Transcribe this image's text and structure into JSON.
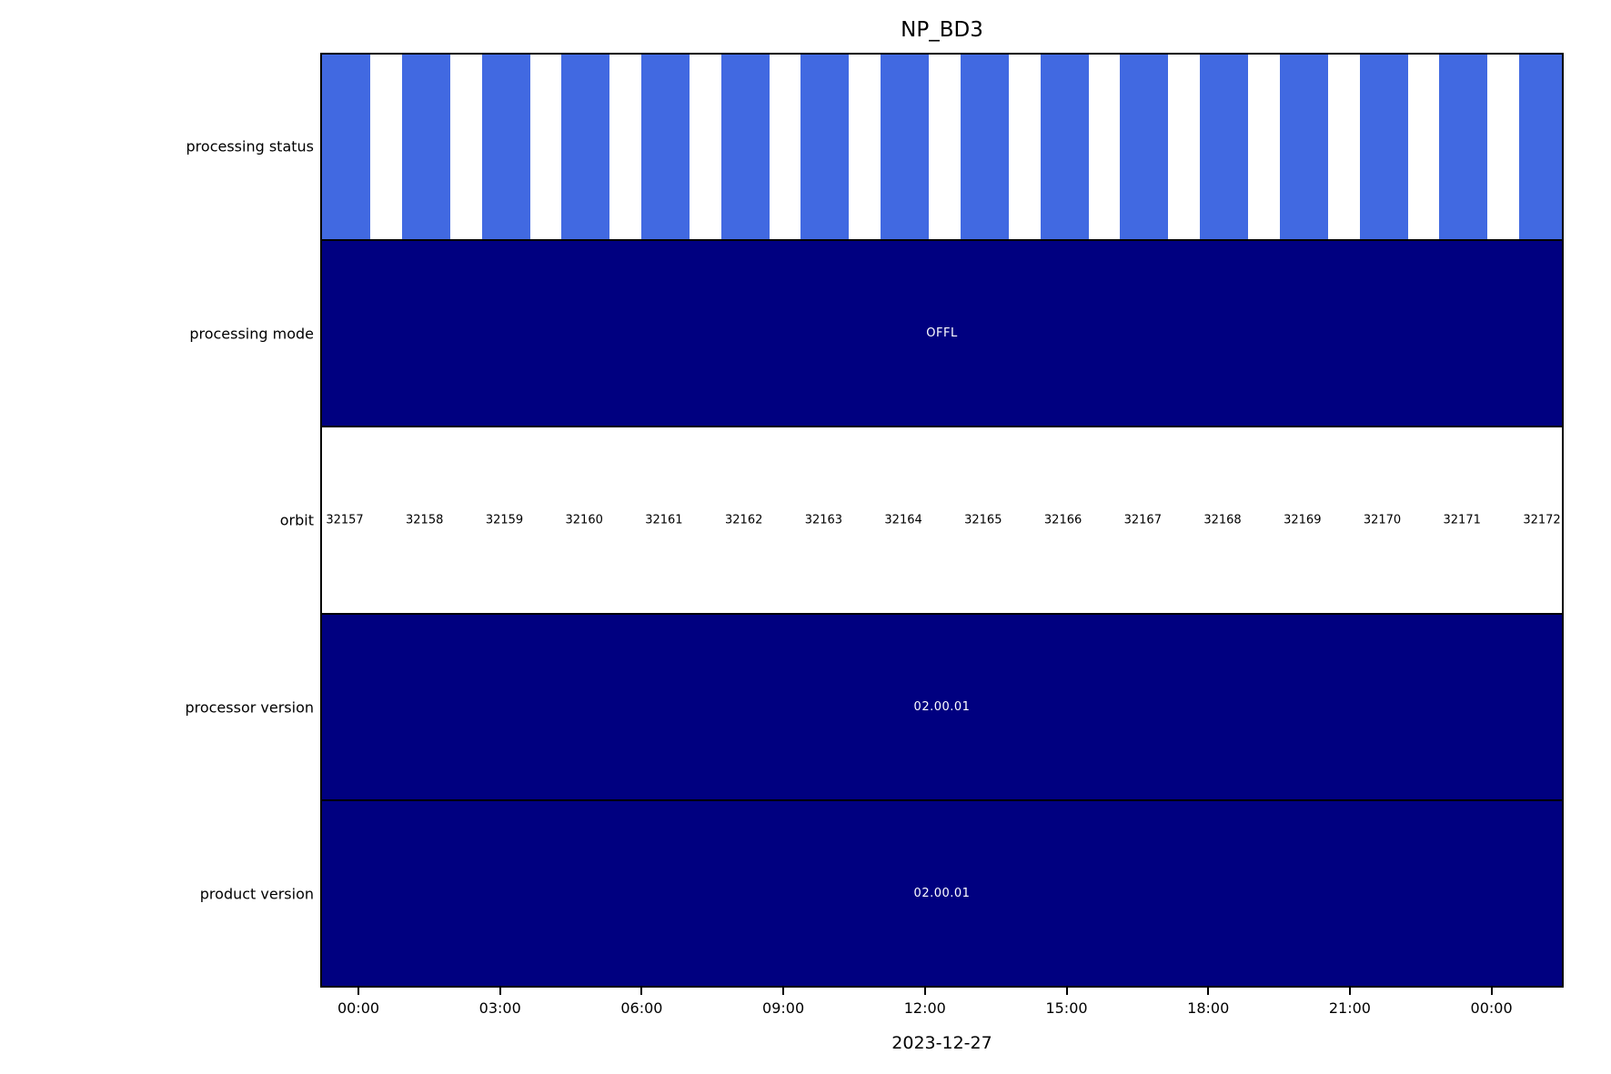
{
  "title": "NP_BD3",
  "xlabel": "2023-12-27",
  "x_ticks": [
    "00:00",
    "03:00",
    "06:00",
    "09:00",
    "12:00",
    "15:00",
    "18:00",
    "21:00",
    "00:00"
  ],
  "rows": [
    {
      "label": "processing status"
    },
    {
      "label": "processing mode",
      "value": "OFFL"
    },
    {
      "label": "orbit"
    },
    {
      "label": "processor version",
      "value": "02.00.01"
    },
    {
      "label": "product version",
      "value": "02.00.01"
    }
  ],
  "orbits": [
    "32157",
    "32158",
    "32159",
    "32160",
    "32161",
    "32162",
    "32163",
    "32164",
    "32165",
    "32166",
    "32167",
    "32168",
    "32169",
    "32170",
    "32171",
    "32172"
  ],
  "status_bar_count": 16,
  "colors": {
    "status_bar_blue": "#4169E1",
    "segment_navy": "#000080",
    "text_on_navy": "#ffffff",
    "axis_black": "#000000",
    "background_white": "#ffffff"
  },
  "chart_data": {
    "type": "bar",
    "variant": "categorical-timeline (Gantt-style product status monitor)",
    "title": "NP_BD3",
    "xlabel": "2023-12-27",
    "x_tick_labels": [
      "00:00",
      "03:00",
      "06:00",
      "09:00",
      "12:00",
      "15:00",
      "18:00",
      "21:00",
      "00:00"
    ],
    "x_axis_note": "time axis covers one day (2023-12-27) plus small margins, approx 23:10 previous day to 01:30 next day; ticks every 3 hours",
    "categories": [
      "processing status",
      "processing mode",
      "orbit",
      "processor version",
      "product version"
    ],
    "grid": false,
    "legend": false,
    "rows": [
      {
        "category": "processing status",
        "style": "one royal-blue bar per orbit granule separated by white gaps",
        "bar_count": 16,
        "bar_color": "#4169E1",
        "bar_duty_cycle": 0.6
      },
      {
        "category": "processing mode",
        "segments": [
          {
            "label": "OFFL",
            "extent": "full day",
            "fill": "#000080",
            "text_color": "#ffffff"
          }
        ]
      },
      {
        "category": "orbit",
        "values": [
          32157,
          32158,
          32159,
          32160,
          32161,
          32162,
          32163,
          32164,
          32165,
          32166,
          32167,
          32168,
          32169,
          32170,
          32171,
          32172
        ],
        "style": "white background, one black orbit number per granule"
      },
      {
        "category": "processor version",
        "segments": [
          {
            "label": "02.00.01",
            "extent": "full day",
            "fill": "#000080",
            "text_color": "#ffffff"
          }
        ]
      },
      {
        "category": "product version",
        "segments": [
          {
            "label": "02.00.01",
            "extent": "full day",
            "fill": "#000080",
            "text_color": "#ffffff"
          }
        ]
      }
    ]
  }
}
